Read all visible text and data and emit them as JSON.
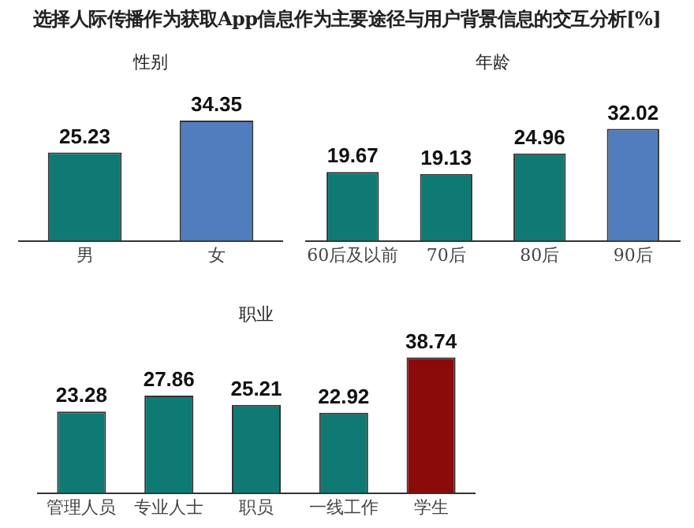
{
  "chart_data": [
    {
      "type": "bar",
      "title": "选择人际传播作为获取App信息作为主要途径与用户背景信息的交互分析[%]",
      "subtitle": "性别",
      "categories": [
        "男",
        "女"
      ],
      "values": [
        25.23,
        34.35
      ],
      "colors": [
        "#0f7a74",
        "#4f7dbd"
      ],
      "data_labels": true
    },
    {
      "type": "bar",
      "title": "年龄",
      "categories": [
        "60后及以前",
        "70后",
        "80后",
        "90后"
      ],
      "values": [
        19.67,
        19.13,
        24.96,
        32.02
      ],
      "colors": [
        "#0f7a74",
        "#0f7a74",
        "#0f7a74",
        "#4f7dbd"
      ],
      "data_labels": true
    },
    {
      "type": "bar",
      "title": "职业",
      "categories": [
        "管理人员",
        "专业人士",
        "职员",
        "一线工作",
        "学生"
      ],
      "values": [
        23.28,
        27.86,
        25.21,
        22.92,
        38.74
      ],
      "colors": [
        "#0f7a74",
        "#0f7a74",
        "#0f7a74",
        "#0f7a74",
        "#8b0a0a"
      ],
      "data_labels": true
    }
  ]
}
